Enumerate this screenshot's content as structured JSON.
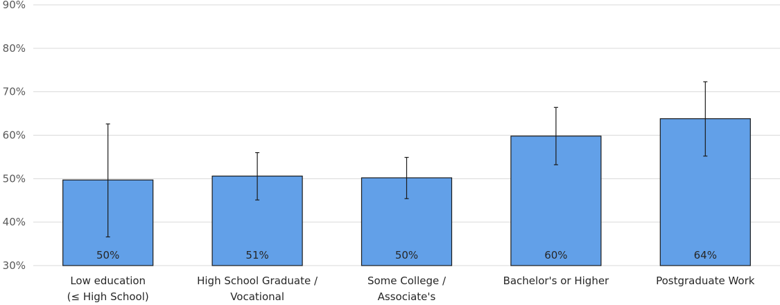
{
  "chart_data": {
    "type": "bar",
    "title": "",
    "xlabel": "",
    "ylabel": "",
    "ylim": [
      0.3,
      0.9
    ],
    "yticks": [
      "30%",
      "40%",
      "50%",
      "60%",
      "70%",
      "80%",
      "90%"
    ],
    "ytick_values": [
      0.3,
      0.4,
      0.5,
      0.6,
      0.7,
      0.8,
      0.9
    ],
    "grid": true,
    "legend": "none",
    "categories": [
      [
        "Low education",
        "(≤ High School)"
      ],
      [
        "High School Graduate /",
        "Vocational"
      ],
      [
        "Some College /",
        "Associate's"
      ],
      [
        "Bachelor's or Higher"
      ],
      [
        "Postgraduate Work"
      ]
    ],
    "values": [
      0.497,
      0.506,
      0.502,
      0.598,
      0.638
    ],
    "data_labels": [
      "50%",
      "51%",
      "50%",
      "60%",
      "64%"
    ],
    "error_low": [
      0.366,
      0.451,
      0.454,
      0.532,
      0.552
    ],
    "error_high": [
      0.626,
      0.56,
      0.549,
      0.664,
      0.723
    ],
    "colors": {
      "bar_fill": "#62A0E8",
      "bar_stroke": "#1a1a1a",
      "grid": "#d9d9d9",
      "error_bar": "#1a1a1a"
    }
  }
}
